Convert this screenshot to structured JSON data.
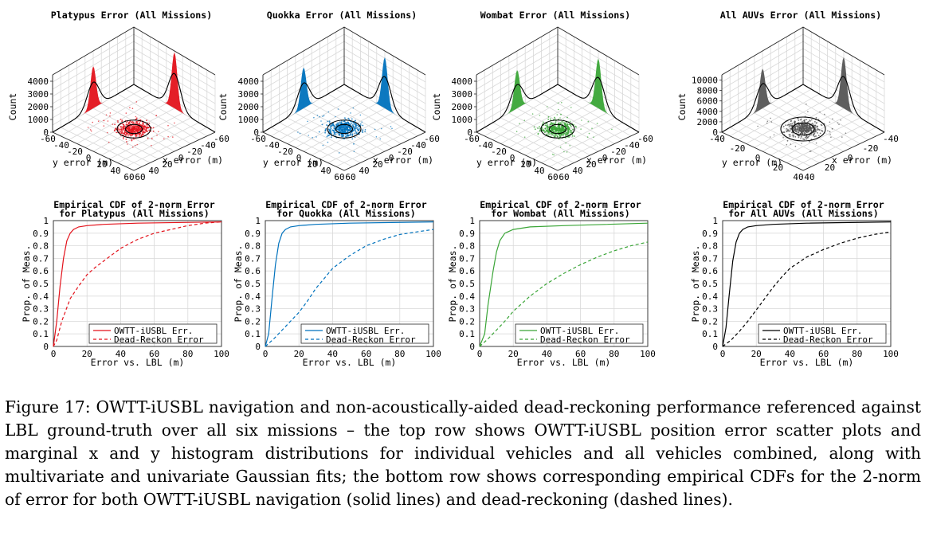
{
  "colors": {
    "platypus": "#e3121b",
    "quokka": "#0072bd",
    "wombat": "#3aa537",
    "all": "#555555",
    "all_line": "#000000",
    "grid": "#d9d9d9",
    "axis": "#262626"
  },
  "chart_data": [
    {
      "type": "scatter3d_histogram",
      "title": "Platypus Error (All Missions)",
      "xlabel": "x error (m)",
      "ylabel": "y error (m)",
      "zlabel": "Count",
      "z_ticks": [
        "0",
        "1000",
        "2000",
        "3000",
        "4000"
      ],
      "zlim": [
        0,
        4500
      ],
      "x_ticks": [
        "-60",
        "-40",
        "-20",
        "0",
        "20",
        "40",
        "60"
      ],
      "y_ticks": [
        "-60",
        "-40",
        "-20",
        "0",
        "20",
        "40",
        "60"
      ],
      "x_histogram_peak": 4400,
      "y_histogram_peak": 3300,
      "color_key": "platypus"
    },
    {
      "type": "scatter3d_histogram",
      "title": "Quokka Error (All Missions)",
      "xlabel": "x error (m)",
      "ylabel": "y error (m)",
      "zlabel": "Count",
      "z_ticks": [
        "0",
        "1000",
        "2000",
        "3000",
        "4000"
      ],
      "zlim": [
        0,
        4500
      ],
      "x_ticks": [
        "-60",
        "-40",
        "-20",
        "0",
        "20",
        "40",
        "60"
      ],
      "y_ticks": [
        "-60",
        "-40",
        "-20",
        "0",
        "20",
        "40",
        "60"
      ],
      "x_histogram_peak": 4000,
      "y_histogram_peak": 3200,
      "color_key": "quokka"
    },
    {
      "type": "scatter3d_histogram",
      "title": "Wombat Error (All Missions)",
      "xlabel": "x error (m)",
      "ylabel": "y error (m)",
      "zlabel": "Count",
      "z_ticks": [
        "0",
        "1000",
        "2000",
        "3000",
        "4000"
      ],
      "zlim": [
        0,
        4500
      ],
      "x_ticks": [
        "-60",
        "-40",
        "-20",
        "0",
        "20",
        "40",
        "60"
      ],
      "y_ticks": [
        "-60",
        "-40",
        "-20",
        "0",
        "20",
        "40",
        "60"
      ],
      "x_histogram_peak": 3900,
      "y_histogram_peak": 3000,
      "color_key": "wombat"
    },
    {
      "type": "scatter3d_histogram",
      "title": "All AUVs Error (All Missions)",
      "xlabel": "x error (m)",
      "ylabel": "y error (m)",
      "zlabel": "Count",
      "z_ticks": [
        "0",
        "2000",
        "4000",
        "6000",
        "8000",
        "10000"
      ],
      "zlim": [
        0,
        11000
      ],
      "x_ticks": [
        "-40",
        "-20",
        "0",
        "20",
        "40"
      ],
      "y_ticks": [
        "-40",
        "-20",
        "0",
        "20",
        "40"
      ],
      "x_histogram_peak": 9800,
      "y_histogram_peak": 7600,
      "color_key": "all"
    },
    {
      "type": "line",
      "title": "Empirical CDF of 2-norm Error",
      "subtitle": "for Platypus (All Missions)",
      "xlabel": "Error vs. LBL (m)",
      "ylabel": "Prop. of Meas.",
      "xlim": [
        0,
        100
      ],
      "ylim": [
        0,
        1
      ],
      "x_ticks": [
        "0",
        "20",
        "40",
        "60",
        "80",
        "100"
      ],
      "y_ticks": [
        "0",
        "0.1",
        "0.2",
        "0.3",
        "0.4",
        "0.5",
        "0.6",
        "0.7",
        "0.8",
        "0.9",
        "1"
      ],
      "grid": true,
      "legend_position": "bottom-right",
      "color_key": "platypus",
      "series": [
        {
          "name": "OWTT-iUSBL Err.",
          "style": "solid",
          "x": [
            0,
            2,
            4,
            6,
            8,
            10,
            12,
            15,
            20,
            30,
            50,
            100
          ],
          "y": [
            0,
            0.2,
            0.48,
            0.7,
            0.84,
            0.9,
            0.93,
            0.95,
            0.96,
            0.97,
            0.98,
            0.99
          ]
        },
        {
          "name": "Dead-Reckon Error",
          "style": "dashed",
          "x": [
            0,
            2,
            5,
            10,
            15,
            20,
            25,
            30,
            40,
            50,
            60,
            70,
            80,
            90,
            100
          ],
          "y": [
            0,
            0.05,
            0.2,
            0.38,
            0.48,
            0.57,
            0.63,
            0.68,
            0.78,
            0.85,
            0.9,
            0.93,
            0.96,
            0.98,
            0.99
          ]
        }
      ]
    },
    {
      "type": "line",
      "title": "Empirical CDF of 2-norm Error",
      "subtitle": "for Quokka (All Missions)",
      "xlabel": "Error vs. LBL (m)",
      "ylabel": "Prop. of Meas.",
      "xlim": [
        0,
        100
      ],
      "ylim": [
        0,
        1
      ],
      "x_ticks": [
        "0",
        "20",
        "40",
        "60",
        "80",
        "100"
      ],
      "y_ticks": [
        "0",
        "0.1",
        "0.2",
        "0.3",
        "0.4",
        "0.5",
        "0.6",
        "0.7",
        "0.8",
        "0.9",
        "1"
      ],
      "grid": true,
      "legend_position": "bottom-right",
      "color_key": "quokka",
      "series": [
        {
          "name": "OWTT-iUSBL Err.",
          "style": "solid",
          "x": [
            0,
            2,
            4,
            6,
            8,
            10,
            12,
            15,
            20,
            30,
            50,
            100
          ],
          "y": [
            0,
            0.1,
            0.38,
            0.65,
            0.82,
            0.9,
            0.93,
            0.95,
            0.96,
            0.97,
            0.98,
            0.99
          ]
        },
        {
          "name": "Dead-Reckon Error",
          "style": "dashed",
          "x": [
            0,
            5,
            10,
            15,
            20,
            25,
            30,
            35,
            40,
            50,
            60,
            70,
            80,
            90,
            100
          ],
          "y": [
            0,
            0.06,
            0.13,
            0.2,
            0.27,
            0.36,
            0.46,
            0.54,
            0.62,
            0.72,
            0.8,
            0.85,
            0.89,
            0.91,
            0.93
          ]
        }
      ]
    },
    {
      "type": "line",
      "title": "Empirical CDF of 2-norm Error",
      "subtitle": "for Wombat (All Missions)",
      "xlabel": "Error vs. LBL (m)",
      "ylabel": "Prop. of Meas.",
      "xlim": [
        0,
        100
      ],
      "ylim": [
        0,
        1
      ],
      "x_ticks": [
        "0",
        "20",
        "40",
        "60",
        "80",
        "100"
      ],
      "y_ticks": [
        "0",
        "0.1",
        "0.2",
        "0.3",
        "0.4",
        "0.5",
        "0.6",
        "0.7",
        "0.8",
        "0.9",
        "1"
      ],
      "grid": true,
      "legend_position": "bottom-right",
      "color_key": "wombat",
      "series": [
        {
          "name": "OWTT-iUSBL Err.",
          "style": "solid",
          "x": [
            0,
            3,
            5,
            8,
            10,
            12,
            15,
            20,
            30,
            50,
            100
          ],
          "y": [
            0,
            0.1,
            0.33,
            0.6,
            0.75,
            0.84,
            0.9,
            0.93,
            0.95,
            0.96,
            0.98
          ]
        },
        {
          "name": "Dead-Reckon Error",
          "style": "dashed",
          "x": [
            0,
            5,
            10,
            15,
            20,
            25,
            30,
            40,
            50,
            60,
            70,
            80,
            90,
            100
          ],
          "y": [
            0,
            0.06,
            0.13,
            0.2,
            0.28,
            0.34,
            0.4,
            0.5,
            0.58,
            0.65,
            0.71,
            0.76,
            0.8,
            0.83
          ]
        }
      ]
    },
    {
      "type": "line",
      "title": "Empirical CDF of 2-norm Error",
      "subtitle": "for All AUVs (All Missions)",
      "xlabel": "Error vs. LBL (m)",
      "ylabel": "Prop. of Meas.",
      "xlim": [
        0,
        100
      ],
      "ylim": [
        0,
        1
      ],
      "x_ticks": [
        "0",
        "20",
        "40",
        "60",
        "80",
        "100"
      ],
      "y_ticks": [
        "0",
        "0.1",
        "0.2",
        "0.3",
        "0.4",
        "0.5",
        "0.6",
        "0.7",
        "0.8",
        "0.9",
        "1"
      ],
      "grid": true,
      "legend_position": "bottom-right",
      "color_key": "all_line",
      "series": [
        {
          "name": "OWTT-iUSBL Err.",
          "style": "solid",
          "x": [
            0,
            2,
            4,
            6,
            8,
            10,
            12,
            15,
            20,
            30,
            50,
            100
          ],
          "y": [
            0,
            0.15,
            0.42,
            0.68,
            0.83,
            0.9,
            0.93,
            0.95,
            0.96,
            0.97,
            0.98,
            0.99
          ]
        },
        {
          "name": "Dead-Reckon Error",
          "style": "dashed",
          "x": [
            0,
            5,
            10,
            15,
            20,
            25,
            30,
            35,
            40,
            50,
            60,
            70,
            80,
            90,
            100
          ],
          "y": [
            0,
            0.05,
            0.12,
            0.2,
            0.29,
            0.38,
            0.47,
            0.55,
            0.62,
            0.71,
            0.77,
            0.82,
            0.86,
            0.89,
            0.91
          ]
        }
      ]
    }
  ],
  "caption": "Figure 17: OWTT-iUSBL navigation and non-acoustically-aided dead-reckoning performance referenced against LBL ground-truth over all six missions – the top row shows OWTT-iUSBL position error scatter plots and marginal x and y histogram distributions for individual vehicles and all vehicles combined, along with multivariate and univariate Gaussian fits; the bottom row shows corresponding empirical CDFs for the 2-norm of error for both OWTT-iUSBL navigation (solid lines) and dead-reckoning (dashed lines)."
}
